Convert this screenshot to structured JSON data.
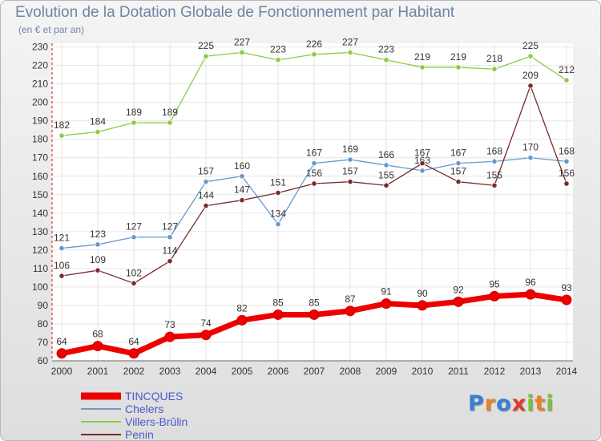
{
  "chart_data": {
    "type": "line",
    "title": "Evolution de la Dotation Globale de Fonctionnement par Habitant",
    "subtitle": "(en € et par an)",
    "categories": [
      "2000",
      "2001",
      "2002",
      "2003",
      "2004",
      "2005",
      "2006",
      "2007",
      "2008",
      "2009",
      "2010",
      "2011",
      "2012",
      "2013",
      "2014"
    ],
    "ylim": [
      60,
      232
    ],
    "yticks": [
      60,
      70,
      80,
      90,
      100,
      110,
      120,
      130,
      140,
      150,
      160,
      170,
      180,
      190,
      200,
      210,
      220,
      230
    ],
    "grid": true,
    "series": [
      {
        "name": "TINCQUES",
        "color": "#ee0000",
        "values": [
          64,
          68,
          64,
          73,
          74,
          82,
          85,
          85,
          87,
          91,
          90,
          92,
          95,
          96,
          93
        ]
      },
      {
        "name": "Chelers",
        "color": "#6699cc",
        "values": [
          121,
          123,
          127,
          127,
          157,
          160,
          134,
          167,
          169,
          166,
          163,
          167,
          168,
          170,
          168
        ]
      },
      {
        "name": "Villers-Brûlin",
        "color": "#88cc44",
        "values": [
          182,
          184,
          189,
          189,
          225,
          227,
          223,
          226,
          227,
          223,
          219,
          219,
          218,
          225,
          212
        ]
      },
      {
        "name": "Penin",
        "color": "#7a2a2a",
        "values": [
          106,
          109,
          102,
          114,
          144,
          147,
          151,
          156,
          157,
          155,
          167,
          157,
          155,
          209,
          156
        ]
      }
    ]
  },
  "logo": {
    "letters": [
      "P",
      "r",
      "o",
      "x",
      "i",
      "t",
      "i"
    ],
    "colors": [
      "#3a7fd0",
      "#e9812a",
      "#3a7fd0",
      "#e23b2a",
      "#7cbf3b",
      "#e9812a",
      "#7cbf3b"
    ]
  }
}
